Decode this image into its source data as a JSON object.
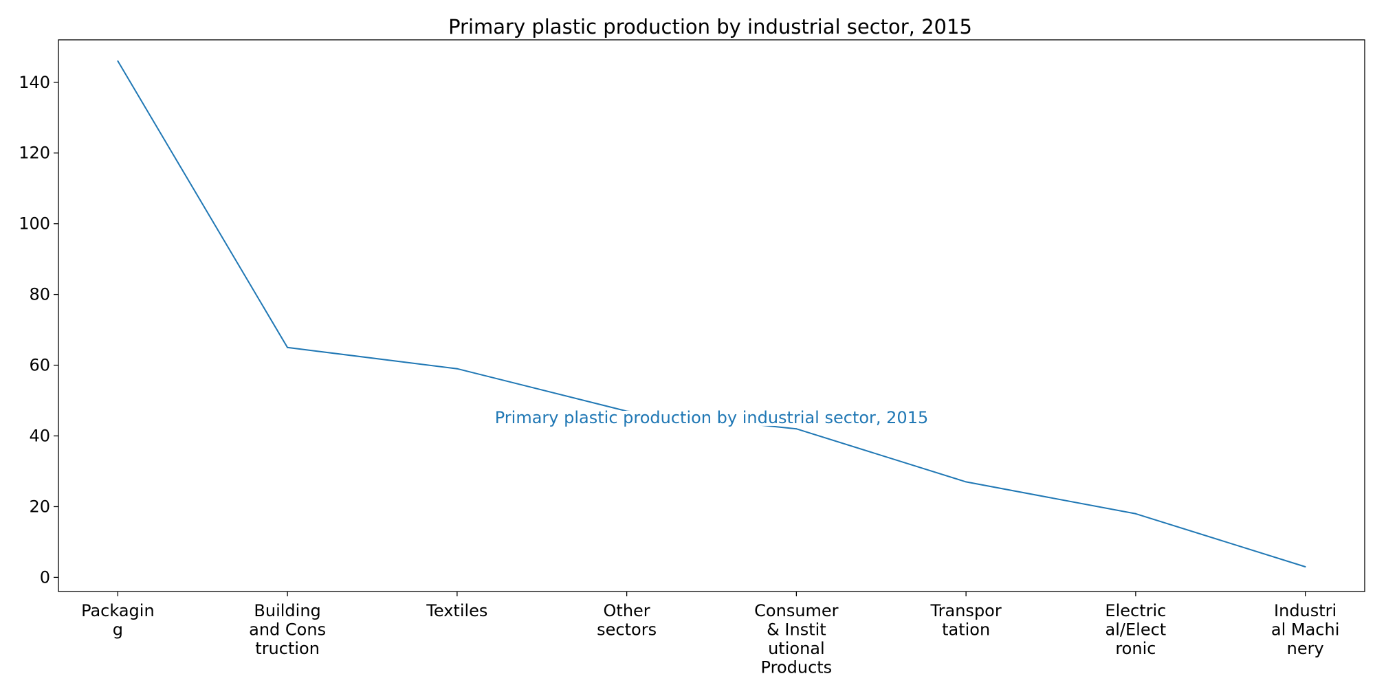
{
  "chart_data": {
    "type": "line",
    "title": "Primary plastic production by industrial sector, 2015",
    "xlabel": "",
    "ylabel": "",
    "categories": [
      [
        "Packagin",
        "g"
      ],
      [
        "Building",
        "and Cons",
        "truction"
      ],
      [
        "Textiles"
      ],
      [
        "Other",
        "sectors"
      ],
      [
        "Consumer",
        "& Instit",
        "utional",
        "Products"
      ],
      [
        "Transpor",
        "tation"
      ],
      [
        "Electric",
        "al/Elect",
        "ronic"
      ],
      [
        "Industri",
        "al Machi",
        "nery"
      ]
    ],
    "series": [
      {
        "name": "Primary plastic production by industrial sector, 2015",
        "color": "#1f77b4",
        "values": [
          146,
          65,
          59,
          47,
          42,
          27,
          18,
          3
        ]
      }
    ],
    "ylim": [
      -4,
      152
    ],
    "yticks": [
      0,
      20,
      40,
      60,
      80,
      100,
      120,
      140
    ],
    "grid": false,
    "legend": "none",
    "inline_label": {
      "text": "Primary plastic production by industrial sector, 2015",
      "at_category_index": 3.5,
      "at_value": 44
    }
  }
}
